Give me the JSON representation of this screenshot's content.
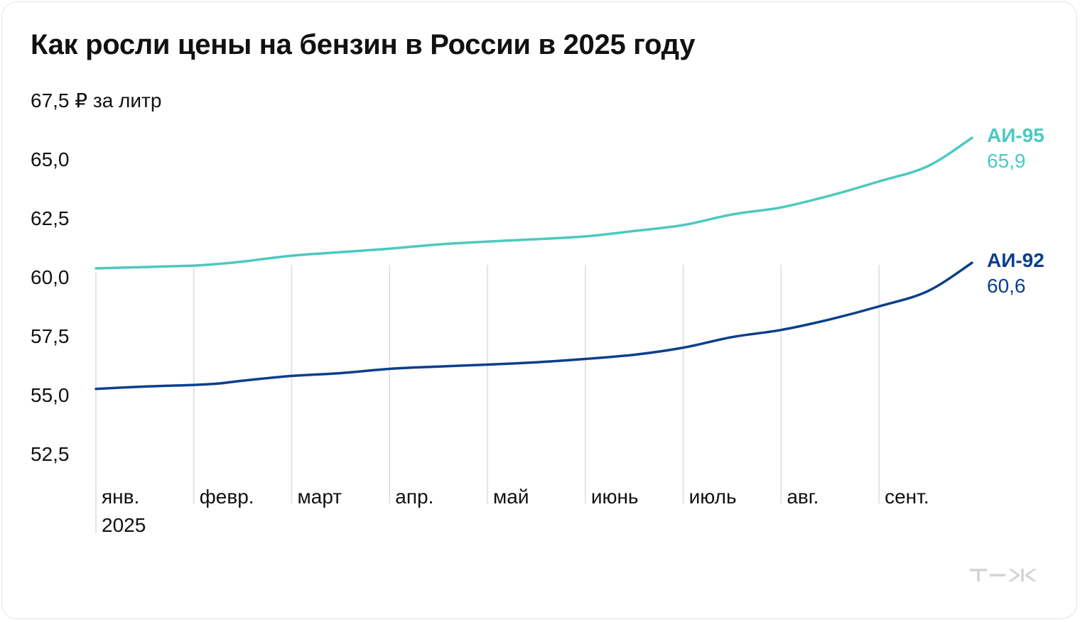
{
  "title": "Как росли цены на бензин в России в 2025 году",
  "logo_text": "Т—Ж",
  "colors": {
    "ai95": "#4cc9c0",
    "ai92": "#0b3f8c",
    "grid": "#dcdcdc",
    "text": "#111111"
  },
  "chart_data": {
    "type": "line",
    "title": "Как росли цены на бензин в России в 2025 году",
    "ylabel": "₽ за литр",
    "ylim": [
      52.5,
      67.5
    ],
    "yticks": [
      52.5,
      55.0,
      57.5,
      60.0,
      62.5,
      65.0,
      67.5
    ],
    "ytick_labels": [
      "52,5",
      "55,0",
      "57,5",
      "60,0",
      "62,5",
      "65,0",
      "67,5 ₽ за литр"
    ],
    "xlim": [
      0,
      9
    ],
    "categories": [
      "янв.",
      "февр.",
      "март",
      "апр.",
      "май",
      "июнь",
      "июль",
      "авг.",
      "сент."
    ],
    "year_label": "2025",
    "grid": "vertical",
    "series": [
      {
        "name": "АИ-95",
        "color": "#4cc9c0",
        "last_value_label": "65,9",
        "points": [
          [
            0.0,
            60.36
          ],
          [
            0.5,
            60.42
          ],
          [
            1.0,
            60.48
          ],
          [
            1.25,
            60.55
          ],
          [
            1.5,
            60.65
          ],
          [
            2.0,
            60.9
          ],
          [
            2.5,
            61.05
          ],
          [
            3.0,
            61.2
          ],
          [
            3.5,
            61.38
          ],
          [
            4.0,
            61.5
          ],
          [
            4.5,
            61.6
          ],
          [
            5.0,
            61.72
          ],
          [
            5.5,
            61.95
          ],
          [
            6.0,
            62.2
          ],
          [
            6.5,
            62.65
          ],
          [
            7.0,
            62.95
          ],
          [
            7.5,
            63.45
          ],
          [
            8.0,
            64.05
          ],
          [
            8.5,
            64.7
          ],
          [
            8.95,
            65.9
          ]
        ]
      },
      {
        "name": "АИ-92",
        "color": "#0b3f8c",
        "last_value_label": "60,6",
        "points": [
          [
            0.0,
            55.25
          ],
          [
            0.5,
            55.35
          ],
          [
            1.0,
            55.42
          ],
          [
            1.25,
            55.48
          ],
          [
            1.5,
            55.6
          ],
          [
            2.0,
            55.8
          ],
          [
            2.5,
            55.92
          ],
          [
            3.0,
            56.1
          ],
          [
            3.5,
            56.2
          ],
          [
            4.0,
            56.28
          ],
          [
            4.5,
            56.38
          ],
          [
            5.0,
            56.52
          ],
          [
            5.5,
            56.7
          ],
          [
            6.0,
            57.0
          ],
          [
            6.5,
            57.45
          ],
          [
            7.0,
            57.75
          ],
          [
            7.5,
            58.2
          ],
          [
            8.0,
            58.75
          ],
          [
            8.5,
            59.4
          ],
          [
            8.95,
            60.6
          ]
        ]
      }
    ]
  }
}
